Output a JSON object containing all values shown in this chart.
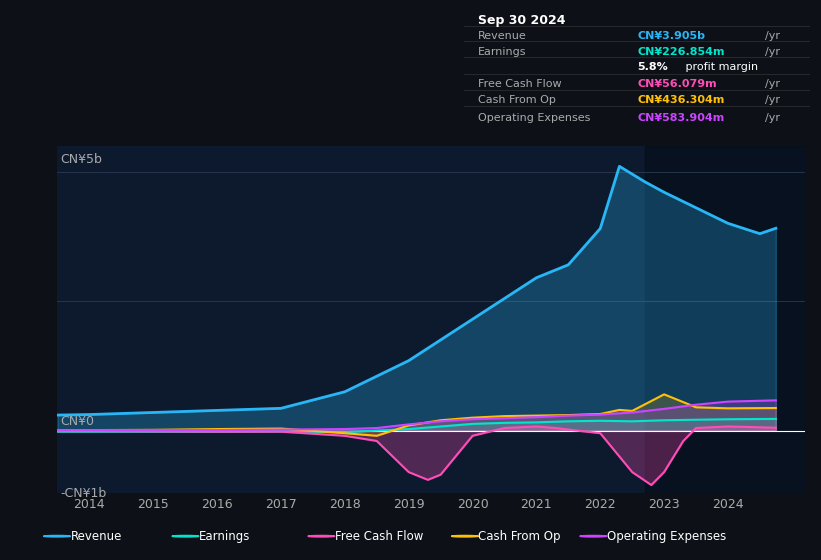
{
  "bg_color": "#0d1117",
  "plot_bg_color": "#0d1a2e",
  "info_box": {
    "title": "Sep 30 2024",
    "rows": [
      {
        "label": "Revenue",
        "value": "CN¥3.905b /yr",
        "value_color": "#29b6f6"
      },
      {
        "label": "Earnings",
        "value": "CN¥226.854m /yr",
        "value_color": "#00e5cc"
      },
      {
        "label": "",
        "value": "5.8% profit margin",
        "value_color": "#ffffff"
      },
      {
        "label": "Free Cash Flow",
        "value": "CN¥56.079m /yr",
        "value_color": "#ff4db8"
      },
      {
        "label": "Cash From Op",
        "value": "CN¥436.304m /yr",
        "value_color": "#ffc107"
      },
      {
        "label": "Operating Expenses",
        "value": "CN¥583.904m /yr",
        "value_color": "#cc44ff"
      }
    ]
  },
  "ylabel_top": "CN¥5b",
  "ylabel_zero": "CN¥0",
  "ylabel_bottom": "-CN¥1b",
  "revenue_x": [
    2013.5,
    2014,
    2015,
    2016,
    2017,
    2018,
    2019,
    2020,
    2021,
    2021.5,
    2022,
    2022.3,
    2022.7,
    2023,
    2023.5,
    2024,
    2024.5,
    2024.75
  ],
  "revenue_y": [
    300,
    310,
    350,
    390,
    430,
    750,
    1350,
    2150,
    2950,
    3200,
    3900,
    5100,
    4800,
    4600,
    4300,
    4000,
    3800,
    3905
  ],
  "earnings_x": [
    2013.5,
    2014,
    2015,
    2016,
    2017,
    2018,
    2018.5,
    2019,
    2019.5,
    2020,
    2020.5,
    2021,
    2021.5,
    2022,
    2022.5,
    2023,
    2023.5,
    2024,
    2024.75
  ],
  "earnings_y": [
    -20,
    -20,
    -20,
    -20,
    -15,
    -30,
    0,
    30,
    80,
    130,
    150,
    160,
    180,
    190,
    180,
    200,
    210,
    220,
    226
  ],
  "fcf_x": [
    2013.5,
    2014,
    2015,
    2016,
    2017,
    2018,
    2018.5,
    2019,
    2019.3,
    2019.5,
    2020,
    2020.5,
    2021,
    2021.3,
    2021.5,
    2022,
    2022.3,
    2022.5,
    2022.8,
    2023,
    2023.3,
    2023.5,
    2024,
    2024.75
  ],
  "fcf_y": [
    -10,
    -10,
    -15,
    -20,
    -20,
    -100,
    -200,
    -800,
    -950,
    -850,
    -100,
    50,
    80,
    50,
    20,
    -50,
    -500,
    -800,
    -1050,
    -800,
    -200,
    50,
    80,
    56
  ],
  "cashop_x": [
    2013.5,
    2014,
    2015,
    2016,
    2017,
    2018,
    2018.5,
    2019,
    2019.5,
    2020,
    2020.5,
    2021,
    2021.5,
    2022,
    2022.3,
    2022.5,
    2023,
    2023.3,
    2023.5,
    2024,
    2024.75
  ],
  "cashop_y": [
    10,
    10,
    15,
    30,
    40,
    -50,
    -100,
    100,
    200,
    250,
    280,
    290,
    300,
    320,
    400,
    380,
    700,
    550,
    450,
    430,
    436
  ],
  "opex_x": [
    2013.5,
    2014,
    2015,
    2016,
    2017,
    2018,
    2018.5,
    2019,
    2019.5,
    2020,
    2020.5,
    2021,
    2021.5,
    2022,
    2022.5,
    2023,
    2023.5,
    2024,
    2024.75
  ],
  "opex_y": [
    10,
    10,
    10,
    10,
    20,
    30,
    50,
    120,
    180,
    220,
    240,
    260,
    290,
    310,
    350,
    420,
    500,
    560,
    584
  ],
  "revenue_color": "#29b6f6",
  "earnings_color": "#00e5cc",
  "fcf_color": "#ff4db8",
  "cashop_color": "#ffc107",
  "opex_color": "#cc44ff",
  "grid_color": "#2a3a50",
  "zero_line_color": "#ffffff",
  "ylim": [
    -1200,
    5500
  ],
  "xlim": [
    2013.5,
    2025.2
  ],
  "legend_items": [
    {
      "label": "Revenue",
      "color": "#29b6f6"
    },
    {
      "label": "Earnings",
      "color": "#00e5cc"
    },
    {
      "label": "Free Cash Flow",
      "color": "#ff4db8"
    },
    {
      "label": "Cash From Op",
      "color": "#ffc107"
    },
    {
      "label": "Operating Expenses",
      "color": "#cc44ff"
    }
  ]
}
